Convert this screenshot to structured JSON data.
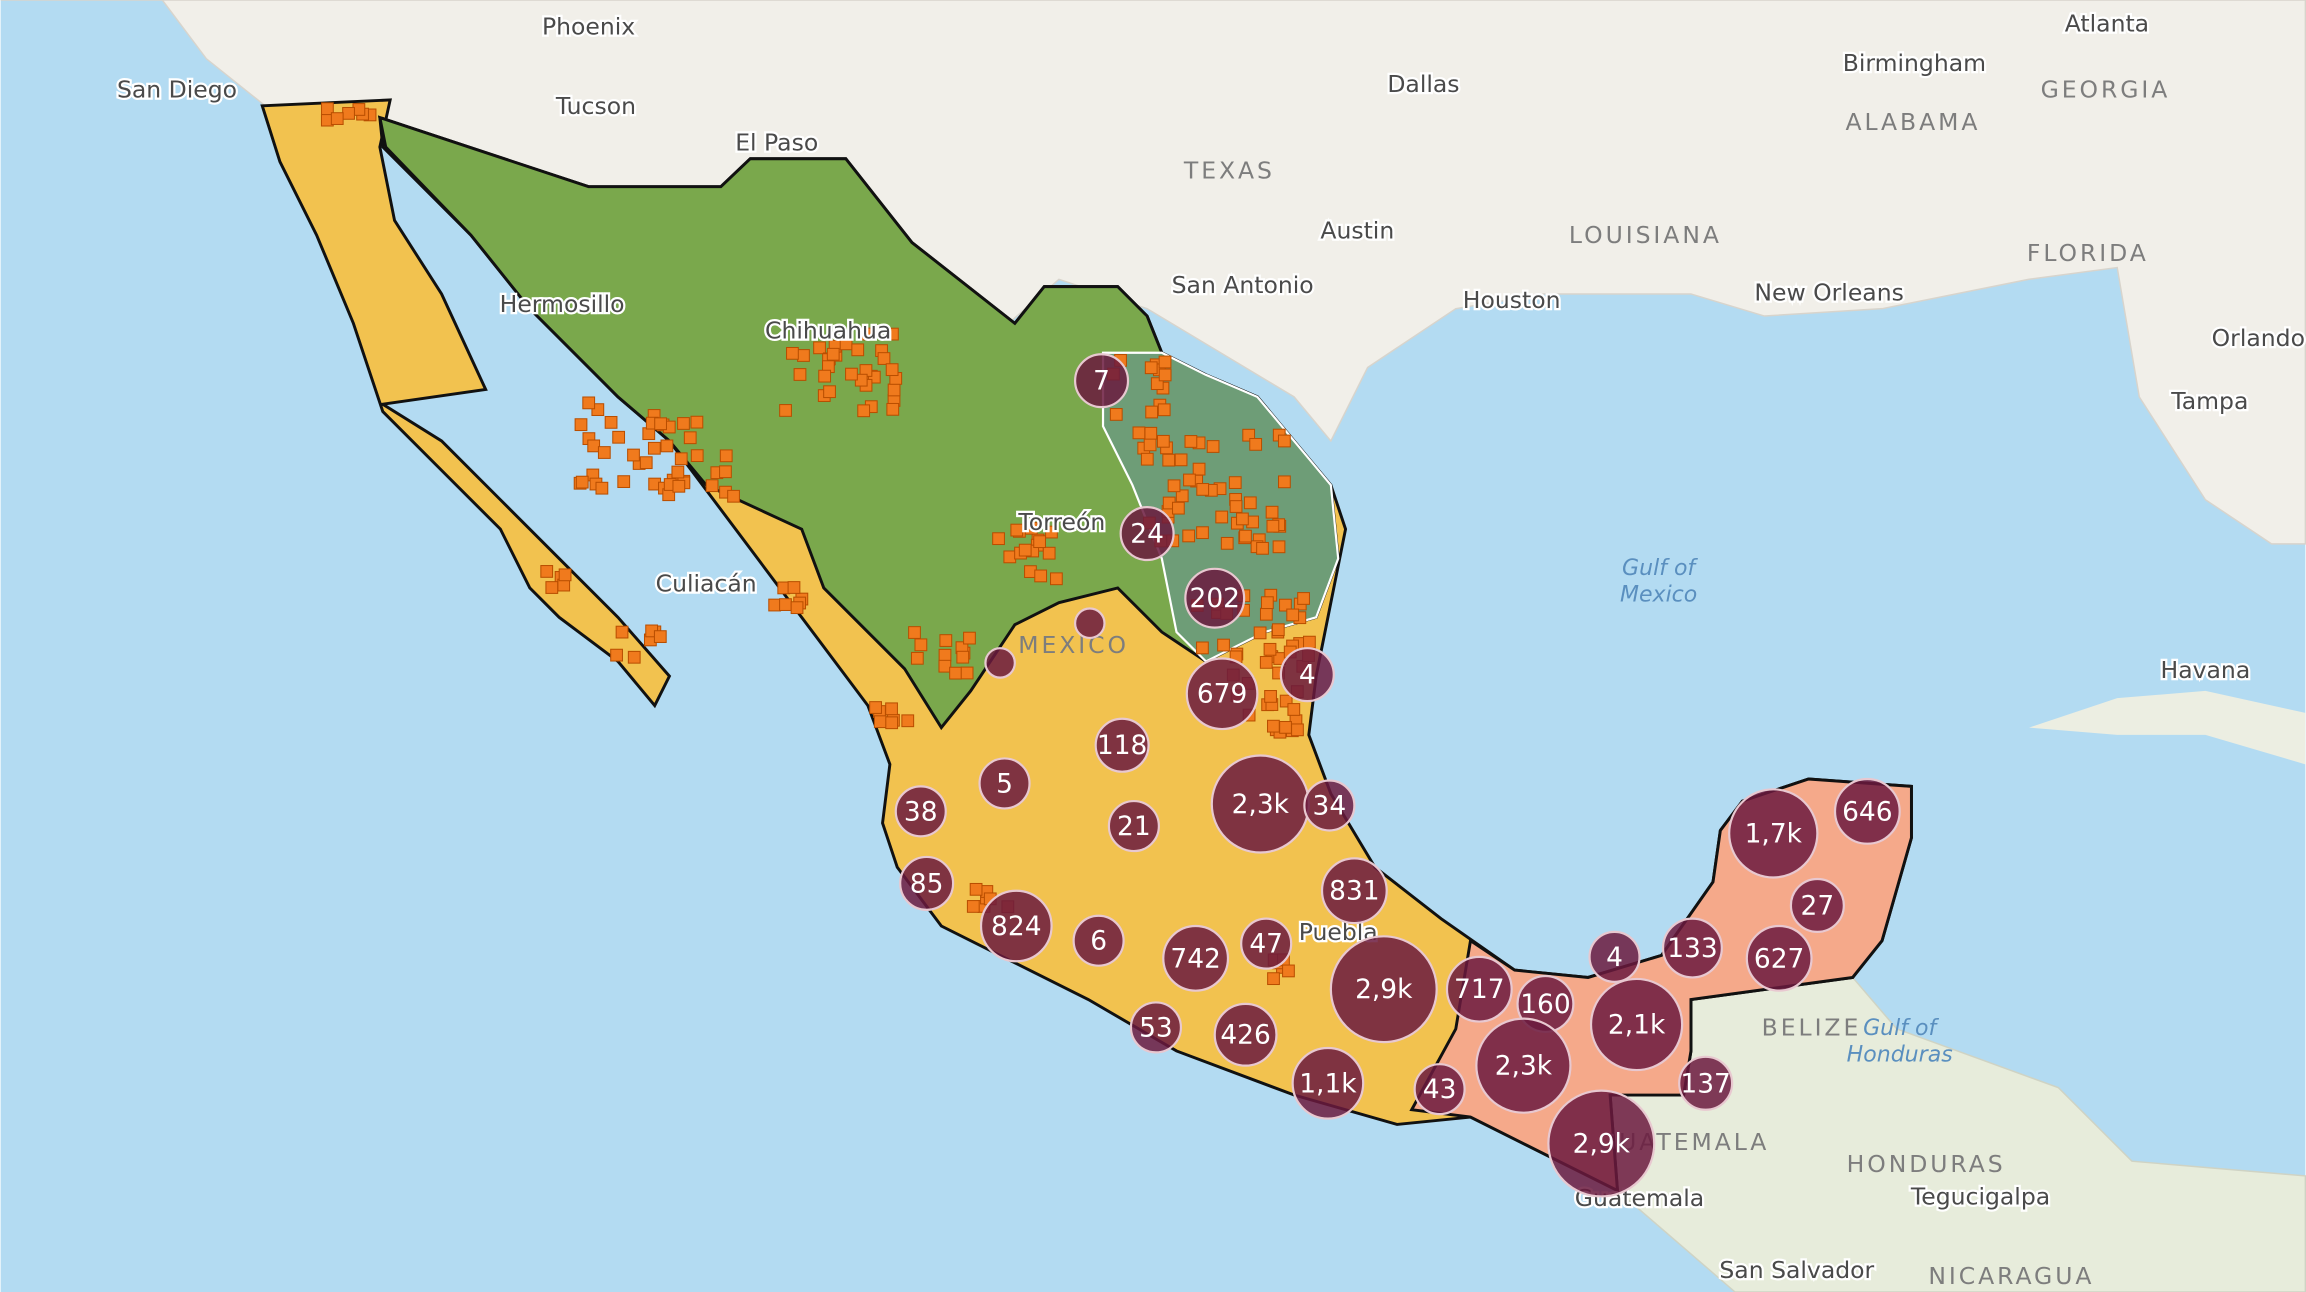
{
  "places": [
    "San Diego",
    "Phoenix",
    "Tucson",
    "El Paso",
    "Dallas",
    "TEXAS",
    "Austin",
    "San Antonio",
    "Houston",
    "LOUISIANA",
    "Birmingham",
    "ALABAMA",
    "Atlanta",
    "GEORGIA",
    "New Orleans",
    "FLORIDA",
    "Orlando",
    "Tampa",
    "Havana",
    "Hermosillo",
    "Chihuahua",
    "Torreón",
    "Culiacán",
    "MEXICO",
    "Puebla",
    "BELIZE",
    "GUATEMALA",
    "Guatemala",
    "HONDURAS",
    "Tegucigalpa",
    "San Salvador",
    "NICARAGUA"
  ],
  "water": [
    "Gulf of",
    "Mexico",
    "Gulf of",
    "Honduras"
  ],
  "clusters": [
    "7",
    "24",
    "202",
    "4",
    "679",
    "118",
    "5",
    "2,3k",
    "34",
    "38",
    "21",
    "1,7k",
    "646",
    "85",
    "831",
    "27",
    "824",
    "6",
    "47",
    "4",
    "133",
    "627",
    "742",
    "2,9k",
    "717",
    "160",
    "2,1k",
    "53",
    "426",
    "2,3k",
    "1,1k",
    "43",
    "137",
    "2,9k"
  ]
}
